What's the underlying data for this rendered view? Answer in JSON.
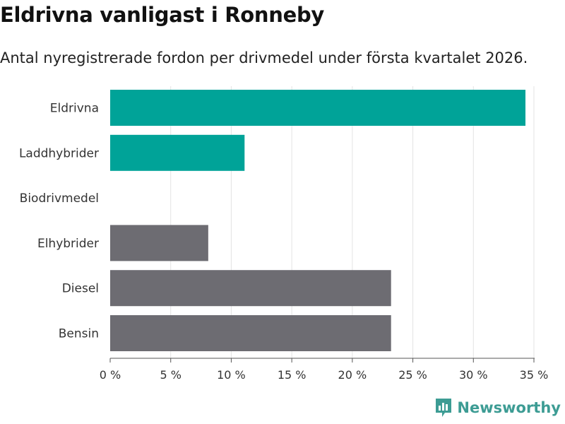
{
  "header": {
    "title": "Eldrivna vanligast i Ronneby",
    "subtitle": "Antal nyregistrerade fordon per drivmedel under första kvartalet 2026."
  },
  "brand": {
    "name": "Newsworthy",
    "color": "#3d9c94"
  },
  "chart_data": {
    "type": "bar",
    "orientation": "horizontal",
    "title": "Eldrivna vanligast i Ronneby",
    "subtitle": "Antal nyregistrerade fordon per drivmedel under första kvartalet 2026.",
    "categories": [
      "Eldrivna",
      "Laddhybrider",
      "Biodrivmedel",
      "Elhybrider",
      "Diesel",
      "Bensin"
    ],
    "values": [
      34.3,
      11.1,
      0,
      8.1,
      23.2,
      23.2
    ],
    "colors": [
      "#00a398",
      "#00a398",
      "#00a398",
      "#6d6c72",
      "#6d6c72",
      "#6d6c72"
    ],
    "xlim": [
      0,
      35
    ],
    "xticks": [
      0,
      5,
      10,
      15,
      20,
      25,
      30,
      35
    ],
    "xtick_labels": [
      "0 %",
      "5 %",
      "10 %",
      "15 %",
      "20 %",
      "25 %",
      "30 %",
      "35 %"
    ],
    "unit": "%",
    "grid": true,
    "xlabel": "",
    "ylabel": ""
  }
}
